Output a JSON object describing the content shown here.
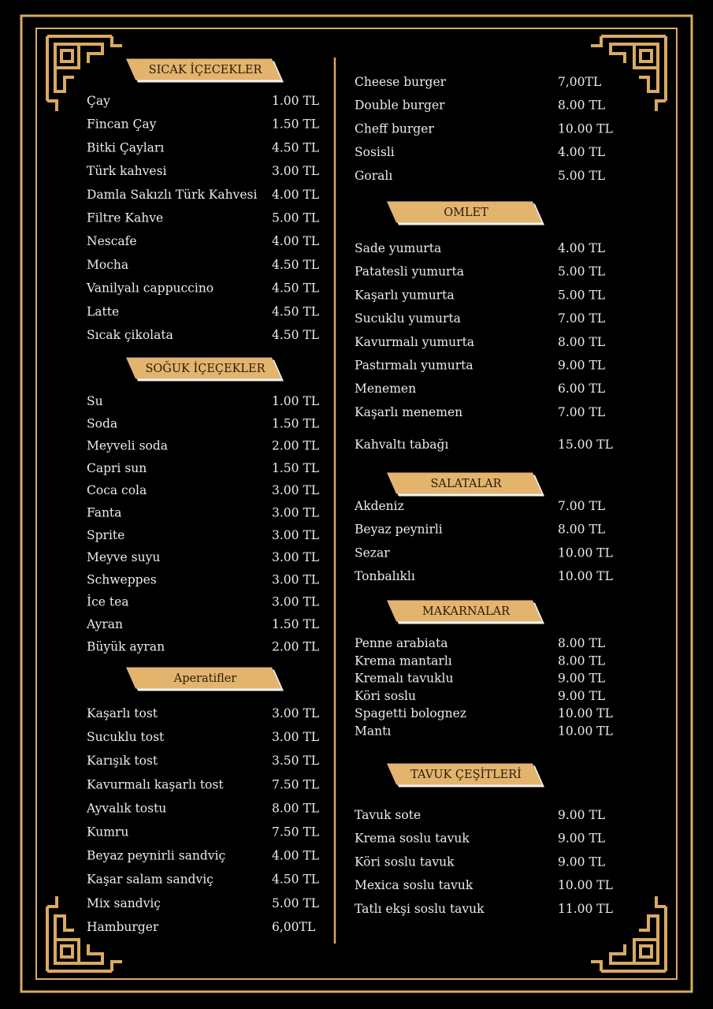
{
  "left": [
    {
      "title": "SICAK İÇECEKLER",
      "items": [
        {
          "name": "Çay",
          "price": "1.00 TL"
        },
        {
          "name": "Fincan Çay",
          "price": "1.50 TL"
        },
        {
          "name": "Bitki Çayları",
          "price": "4.50 TL"
        },
        {
          "name": "Türk kahvesi",
          "price": "3.00 TL"
        },
        {
          "name": "Damla Sakızlı Türk Kahvesi",
          "price": "4.00 TL"
        },
        {
          "name": "Filtre Kahve",
          "price": "5.00 TL"
        },
        {
          "name": "Nescafe",
          "price": "4.00 TL"
        },
        {
          "name": "Mocha",
          "price": "4.50 TL"
        },
        {
          "name": "Vanilyalı cappuccino",
          "price": "4.50 TL"
        },
        {
          "name": "Latte",
          "price": "4.50 TL"
        },
        {
          "name": "Sıcak çikolata",
          "price": "4.50 TL"
        }
      ]
    },
    {
      "title": "SOĞUK İÇEÇEKLER",
      "items": [
        {
          "name": "Su",
          "price": "1.00 TL"
        },
        {
          "name": "Soda",
          "price": "1.50 TL"
        },
        {
          "name": "Meyveli soda",
          "price": "2.00 TL"
        },
        {
          "name": "Capri sun",
          "price": "1.50 TL"
        },
        {
          "name": "Coca cola",
          "price": "3.00 TL"
        },
        {
          "name": "Fanta",
          "price": "3.00 TL"
        },
        {
          "name": "Sprite",
          "price": "3.00 TL"
        },
        {
          "name": "Meyve suyu",
          "price": "3.00 TL"
        },
        {
          "name": "Schweppes",
          "price": "3.00 TL"
        },
        {
          "name": "İce tea",
          "price": "3.00 TL"
        },
        {
          "name": "Ayran",
          "price": "1.50 TL"
        },
        {
          "name": "Büyük ayran",
          "price": "2.00 TL"
        }
      ]
    },
    {
      "title": "Aperatifler",
      "items": [
        {
          "name": "Kaşarlı tost",
          "price": "3.00 TL"
        },
        {
          "name": "Sucuklu tost",
          "price": "3.00 TL"
        },
        {
          "name": "Karışık tost",
          "price": "3.50 TL"
        },
        {
          "name": "Kavurmalı kaşarlı tost",
          "price": "7.50 TL"
        },
        {
          "name": "Ayvalık tostu",
          "price": "8.00 TL"
        },
        {
          "name": "Kumru",
          "price": "7.50 TL"
        },
        {
          "name": "Beyaz peynirli sandviç",
          "price": "4.00 TL"
        },
        {
          "name": "Kaşar salam sandviç",
          "price": "4.50 TL"
        },
        {
          "name": "Mix sandviç",
          "price": "5.00 TL"
        },
        {
          "name": "Hamburger",
          "price": "6,00TL"
        }
      ]
    }
  ],
  "right": [
    {
      "items": [
        {
          "name": "Cheese burger",
          "price": "7,00TL"
        },
        {
          "name": "Double burger",
          "price": "8.00 TL"
        },
        {
          "name": "Cheff burger",
          "price": "10.00 TL"
        },
        {
          "name": "Sosisli",
          "price": "4.00 TL"
        },
        {
          "name": "Goralı",
          "price": "5.00 TL"
        }
      ]
    },
    {
      "title": "OMLET",
      "items": [
        {
          "name": "Sade yumurta",
          "price": "4.00 TL"
        },
        {
          "name": "Patatesli yumurta",
          "price": "5.00 TL"
        },
        {
          "name": "Kaşarlı yumurta",
          "price": "5.00 TL"
        },
        {
          "name": "Sucuklu yumurta",
          "price": "7.00 TL"
        },
        {
          "name": "Kavurmalı yumurta",
          "price": "8.00 TL"
        },
        {
          "name": "Pastırmalı yumurta",
          "price": "9.00 TL"
        },
        {
          "name": "Menemen",
          "price": "6.00 TL"
        },
        {
          "name": "Kaşarlı menemen",
          "price": "7.00 TL"
        }
      ]
    },
    {
      "items": [
        {
          "name": "Kahvaltı tabağı",
          "price": "15.00 TL"
        }
      ]
    },
    {
      "title": "SALATALAR",
      "items": [
        {
          "name": "Akdeniz",
          "price": "7.00 TL"
        },
        {
          "name": "Beyaz peynirli",
          "price": "8.00 TL"
        },
        {
          "name": "Sezar",
          "price": "10.00 TL"
        },
        {
          "name": "Tonbalıklı",
          "price": "10.00 TL"
        }
      ]
    },
    {
      "title": "MAKARNALAR",
      "items": [
        {
          "name": "Penne arabiata",
          "price": "8.00 TL"
        },
        {
          "name": "Krema mantarlı",
          "price": "8.00 TL"
        },
        {
          "name": "Kremalı tavuklu",
          "price": "9.00 TL"
        },
        {
          "name": "Köri soslu",
          "price": "9.00 TL"
        },
        {
          "name": "Spagetti bolognez",
          "price": "10.00 TL"
        },
        {
          "name": "Mantı",
          "price": "10.00 TL"
        }
      ]
    },
    {
      "title": "TAVUK ÇEŞİTLERİ",
      "items": [
        {
          "name": "Tavuk sote",
          "price": "9.00 TL"
        },
        {
          "name": "Krema soslu tavuk",
          "price": "9.00 TL"
        },
        {
          "name": "Köri soslu tavuk",
          "price": "9.00 TL"
        },
        {
          "name": "Mexica soslu tavuk",
          "price": "10.00 TL"
        },
        {
          "name": "Tatlı ekşi soslu tavuk",
          "price": "11.00 TL"
        }
      ]
    }
  ]
}
